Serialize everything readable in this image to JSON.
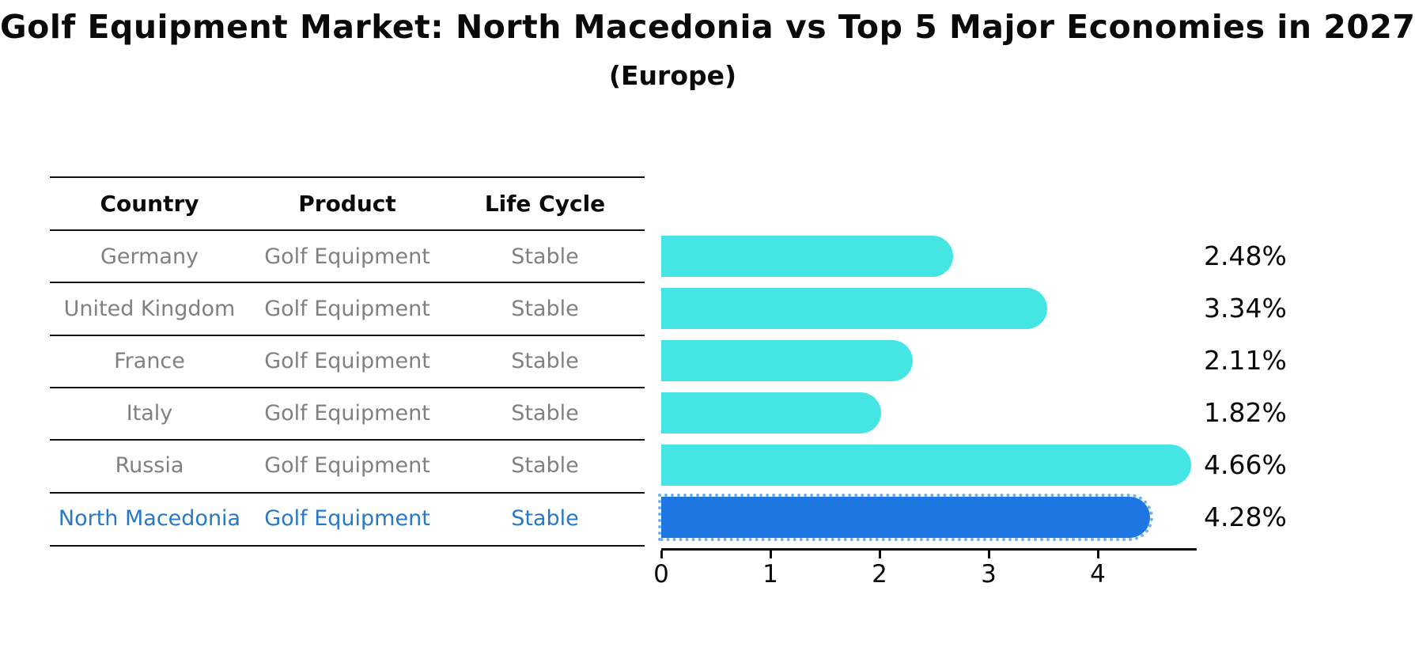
{
  "header": {
    "title": "Golf Equipment Market: North Macedonia vs Top 5 Major Economies in 2027",
    "subtitle": "(Europe)"
  },
  "table": {
    "headers": [
      "Country",
      "Product",
      "Life Cycle"
    ],
    "rows": [
      {
        "country": "Germany",
        "product": "Golf Equipment",
        "life_cycle": "Stable"
      },
      {
        "country": "United Kingdom",
        "product": "Golf Equipment",
        "life_cycle": "Stable"
      },
      {
        "country": "France",
        "product": "Golf Equipment",
        "life_cycle": "Stable"
      },
      {
        "country": "Italy",
        "product": "Golf Equipment",
        "life_cycle": "Stable"
      },
      {
        "country": "Russia",
        "product": "Golf Equipment",
        "life_cycle": "Stable"
      },
      {
        "country": "North Macedonia",
        "product": "Golf Equipment",
        "life_cycle": "Stable"
      }
    ]
  },
  "chart_data": {
    "type": "bar",
    "orientation": "horizontal",
    "title": "Golf Equipment Market: North Macedonia vs Top 5 Major Economies in 2027",
    "subtitle": "(Europe)",
    "categories": [
      "Germany",
      "United Kingdom",
      "France",
      "Italy",
      "Russia",
      "North Macedonia"
    ],
    "values": [
      2.48,
      3.34,
      2.11,
      1.82,
      4.66,
      4.28
    ],
    "value_labels": [
      "2.48%",
      "3.34%",
      "2.11%",
      "1.82%",
      "4.66%",
      "4.28%"
    ],
    "highlight_index": 5,
    "xticks": [
      "0",
      "1",
      "2",
      "3",
      "4"
    ],
    "xlim": [
      0,
      4.9
    ],
    "xlabel": "",
    "ylabel": "",
    "grid": false,
    "legend": false,
    "bar_color": "#44E5E2",
    "highlight_bar_color": "#1D76E2",
    "highlight_dot_color": "rgba(95,168,239,0.9)",
    "highlight_text_color": "#2878C8",
    "row_text_color": "#808080",
    "axis_color": "#0a0a0a"
  }
}
